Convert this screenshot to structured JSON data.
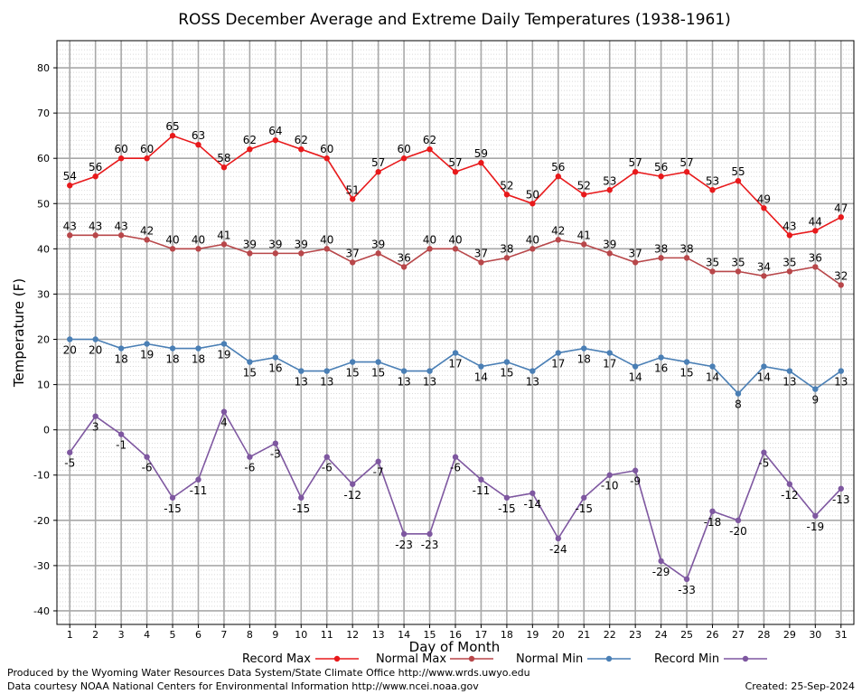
{
  "chart_data": {
    "type": "line",
    "title": "ROSS December Average and Extreme Daily Temperatures (1938-1961)",
    "xlabel": "Day of Month",
    "ylabel": "Temperature (F)",
    "ylim": [
      -43,
      86
    ],
    "yticks": [
      -40,
      -30,
      -20,
      -10,
      0,
      10,
      20,
      30,
      40,
      50,
      60,
      70,
      80
    ],
    "x": [
      1,
      2,
      3,
      4,
      5,
      6,
      7,
      8,
      9,
      10,
      11,
      12,
      13,
      14,
      15,
      16,
      17,
      18,
      19,
      20,
      21,
      22,
      23,
      24,
      25,
      26,
      27,
      28,
      29,
      30,
      31
    ],
    "grid": true,
    "legend_position": "bottom",
    "series": [
      {
        "name": "Record Max",
        "color": "#e8191b",
        "values": [
          54,
          56,
          60,
          60,
          65,
          63,
          58,
          62,
          64,
          62,
          60,
          51,
          57,
          60,
          62,
          57,
          59,
          52,
          50,
          56,
          52,
          53,
          57,
          56,
          57,
          53,
          55,
          49,
          43,
          44,
          47
        ]
      },
      {
        "name": "Normal Max",
        "color": "#b8474a",
        "values": [
          43,
          43,
          43,
          42,
          40,
          40,
          41,
          39,
          39,
          39,
          40,
          37,
          39,
          36,
          40,
          40,
          37,
          38,
          40,
          42,
          41,
          39,
          37,
          38,
          38,
          35,
          35,
          34,
          35,
          36,
          32
        ]
      },
      {
        "name": "Normal Min",
        "color": "#4a7fb5",
        "values": [
          20,
          20,
          18,
          19,
          18,
          18,
          19,
          15,
          16,
          13,
          13,
          15,
          15,
          13,
          13,
          17,
          14,
          15,
          13,
          17,
          18,
          17,
          14,
          16,
          15,
          14,
          8,
          14,
          13,
          9,
          13
        ]
      },
      {
        "name": "Record Min",
        "color": "#7e57a0",
        "values": [
          -5,
          3,
          -1,
          -6,
          -15,
          -11,
          4,
          -6,
          -3,
          -15,
          -6,
          -12,
          -7,
          -23,
          -23,
          -6,
          -11,
          -15,
          -14,
          -24,
          -15,
          -10,
          -9,
          -29,
          -33,
          -18,
          -20,
          -5,
          -12,
          -19,
          -13
        ]
      }
    ]
  },
  "footer": {
    "line1": "Produced by the Wyoming Water Resources Data System/State Climate Office http://www.wrds.uwyo.edu",
    "line2": "Data courtesy NOAA National Centers for Environmental Information http://www.ncei.noaa.gov",
    "created": "Created:  25-Sep-2024"
  }
}
